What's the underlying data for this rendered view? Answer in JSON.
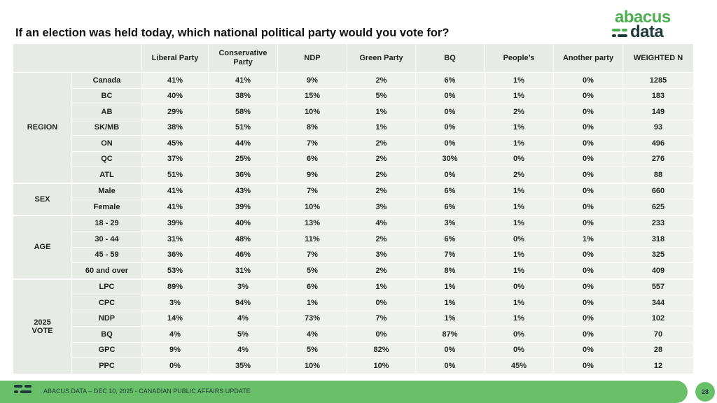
{
  "title": "If an election was held today, which national political party would you vote for?",
  "logo": {
    "line1": "abacus",
    "line2": "data"
  },
  "columns": [
    "Liberal Party",
    "Conservative Party",
    "NDP",
    "Green Party",
    "BQ",
    "People’s",
    "Another party",
    "WEIGHTED N"
  ],
  "groups": [
    {
      "label": "REGION",
      "rows": [
        {
          "label": "Canada",
          "values": [
            "41%",
            "41%",
            "9%",
            "2%",
            "6%",
            "1%",
            "0%",
            "1285"
          ]
        },
        {
          "label": "BC",
          "values": [
            "40%",
            "38%",
            "15%",
            "5%",
            "0%",
            "1%",
            "0%",
            "183"
          ]
        },
        {
          "label": "AB",
          "values": [
            "29%",
            "58%",
            "10%",
            "1%",
            "0%",
            "2%",
            "0%",
            "149"
          ]
        },
        {
          "label": "SK/MB",
          "values": [
            "38%",
            "51%",
            "8%",
            "1%",
            "0%",
            "1%",
            "0%",
            "93"
          ]
        },
        {
          "label": "ON",
          "values": [
            "45%",
            "44%",
            "7%",
            "2%",
            "0%",
            "1%",
            "0%",
            "496"
          ]
        },
        {
          "label": "QC",
          "values": [
            "37%",
            "25%",
            "6%",
            "2%",
            "30%",
            "0%",
            "0%",
            "276"
          ]
        },
        {
          "label": "ATL",
          "values": [
            "51%",
            "36%",
            "9%",
            "2%",
            "0%",
            "2%",
            "0%",
            "88"
          ]
        }
      ]
    },
    {
      "label": "SEX",
      "rows": [
        {
          "label": "Male",
          "values": [
            "41%",
            "43%",
            "7%",
            "2%",
            "6%",
            "1%",
            "0%",
            "660"
          ]
        },
        {
          "label": "Female",
          "values": [
            "41%",
            "39%",
            "10%",
            "3%",
            "6%",
            "1%",
            "0%",
            "625"
          ]
        }
      ]
    },
    {
      "label": "AGE",
      "rows": [
        {
          "label": "18 - 29",
          "values": [
            "39%",
            "40%",
            "13%",
            "4%",
            "3%",
            "1%",
            "0%",
            "233"
          ]
        },
        {
          "label": "30 - 44",
          "values": [
            "31%",
            "48%",
            "11%",
            "2%",
            "6%",
            "0%",
            "1%",
            "318"
          ]
        },
        {
          "label": "45 - 59",
          "values": [
            "36%",
            "46%",
            "7%",
            "3%",
            "7%",
            "1%",
            "0%",
            "325"
          ]
        },
        {
          "label": "60 and over",
          "values": [
            "53%",
            "31%",
            "5%",
            "2%",
            "8%",
            "1%",
            "0%",
            "409"
          ]
        }
      ]
    },
    {
      "label": "2025 VOTE",
      "rows": [
        {
          "label": "LPC",
          "values": [
            "89%",
            "3%",
            "6%",
            "1%",
            "1%",
            "0%",
            "0%",
            "557"
          ]
        },
        {
          "label": "CPC",
          "values": [
            "3%",
            "94%",
            "1%",
            "0%",
            "1%",
            "1%",
            "0%",
            "344"
          ]
        },
        {
          "label": "NDP",
          "values": [
            "14%",
            "4%",
            "73%",
            "7%",
            "1%",
            "1%",
            "0%",
            "102"
          ]
        },
        {
          "label": "BQ",
          "values": [
            "4%",
            "5%",
            "4%",
            "0%",
            "87%",
            "0%",
            "0%",
            "70"
          ]
        },
        {
          "label": "GPC",
          "values": [
            "9%",
            "4%",
            "5%",
            "82%",
            "0%",
            "0%",
            "0%",
            "28"
          ]
        },
        {
          "label": "PPC",
          "values": [
            "0%",
            "35%",
            "10%",
            "10%",
            "0%",
            "45%",
            "0%",
            "12"
          ]
        }
      ]
    }
  ],
  "footer": {
    "text": "ABACUS DATA – DEC 10, 2025 - CANADIAN PUBLIC AFFAIRS UPDATE",
    "page": "28"
  },
  "colors": {
    "green": "#6abf69",
    "dark": "#1e3a3a",
    "header_bg": "#e6ebe6",
    "cell_bg": "#eef1ee"
  }
}
